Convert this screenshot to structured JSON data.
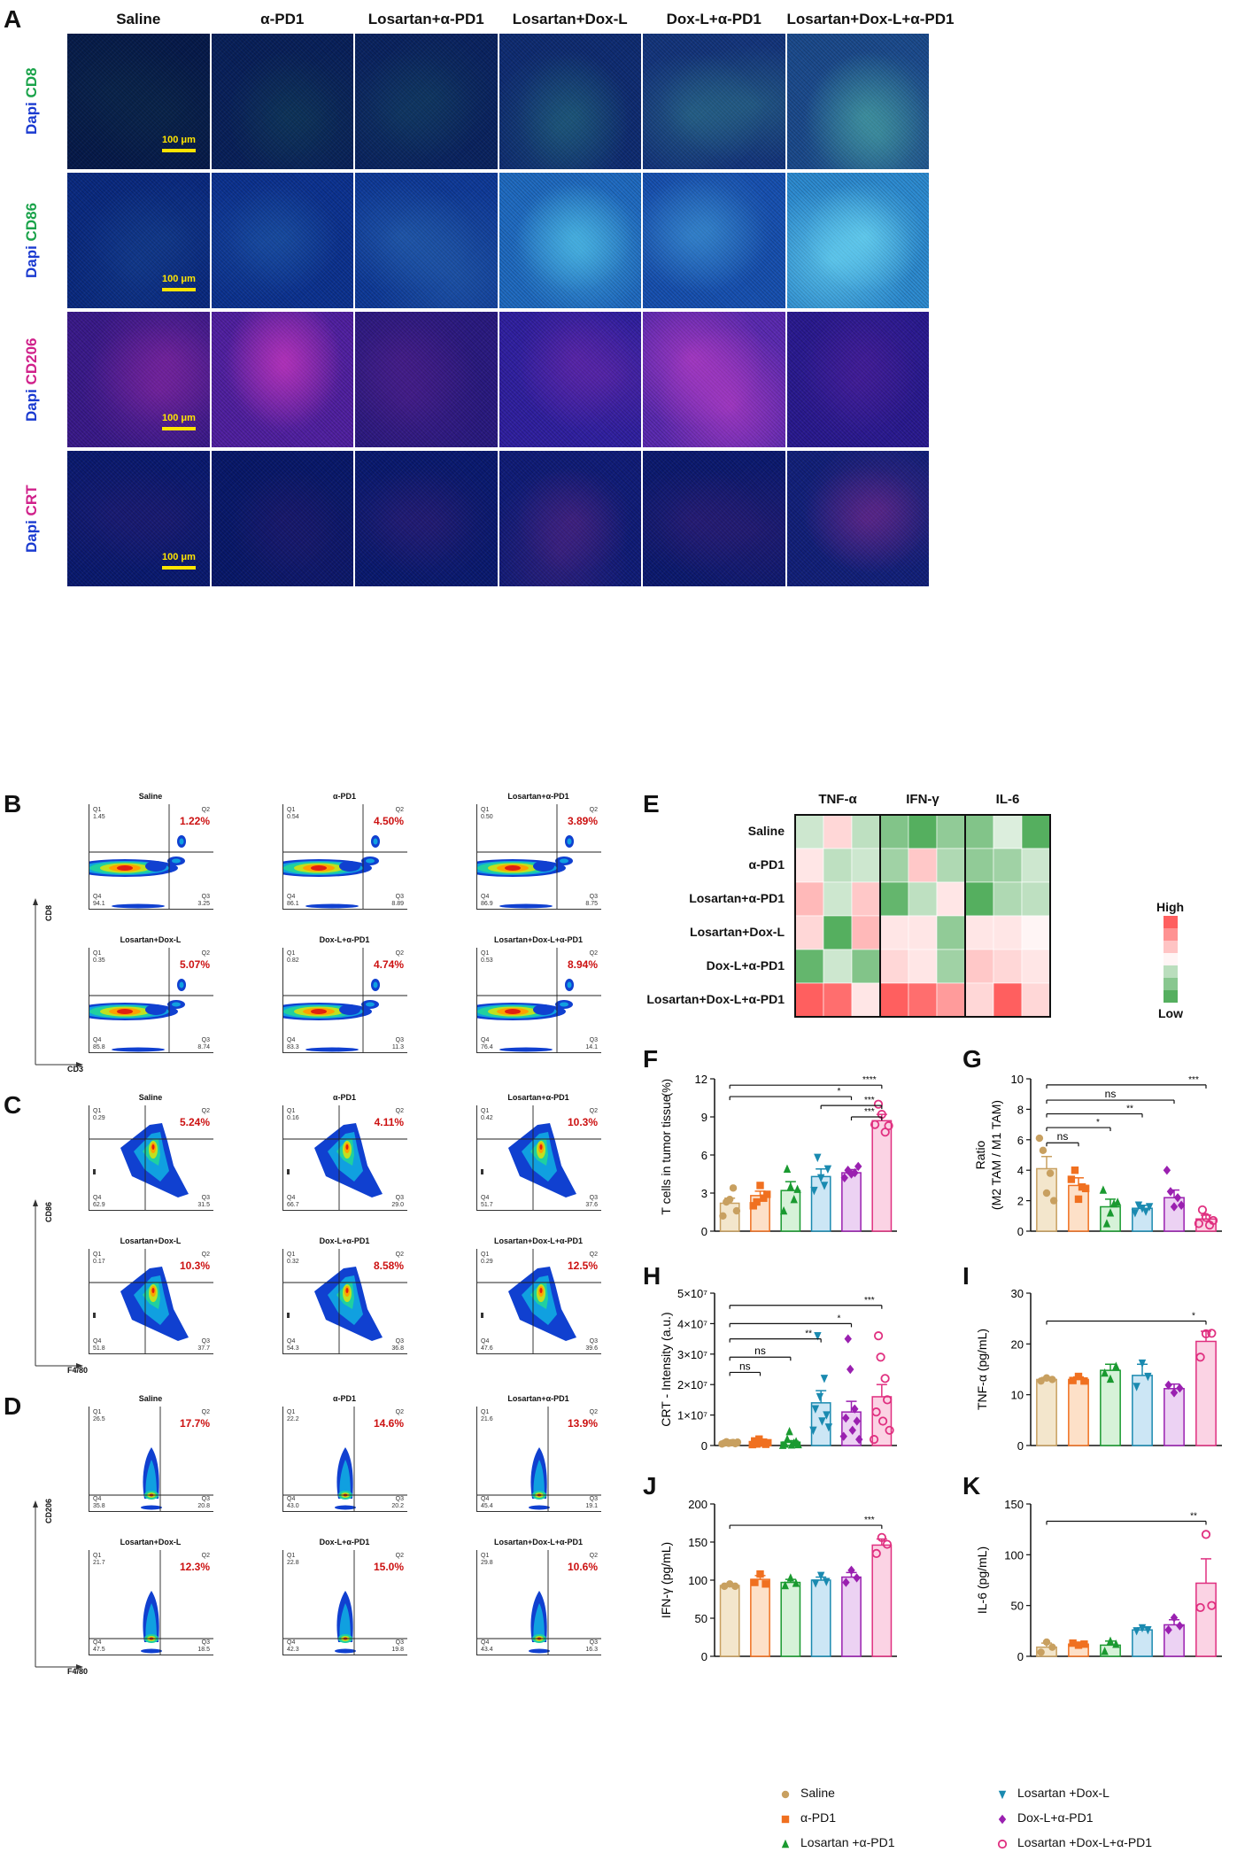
{
  "panels": {
    "A": "A",
    "B": "B",
    "C": "C",
    "D": "D",
    "E": "E",
    "F": "F",
    "G": "G",
    "H": "H",
    "I": "I",
    "J": "J",
    "K": "K"
  },
  "groups": [
    "Saline",
    "α-PD1",
    "Losartan+α-PD1",
    "Losartan+Dox-L",
    "Dox-L+α-PD1",
    "Losartan+Dox-L+α-PD1"
  ],
  "panelA": {
    "rows": [
      {
        "dapi": "Dapi",
        "marker": "CD8",
        "marker_color": "#1aa34a"
      },
      {
        "dapi": "Dapi",
        "marker": "CD86",
        "marker_color": "#1aa34a"
      },
      {
        "dapi": "Dapi",
        "marker": "CD206",
        "marker_color": "#d0208a"
      },
      {
        "dapi": "Dapi",
        "marker": "CRT",
        "marker_color": "#d0208a"
      }
    ],
    "scale": "100 μm"
  },
  "panelB": {
    "ylabel": "CD8",
    "xlabel": "CD3",
    "plots": [
      {
        "title": "Saline",
        "pct": "1.22%",
        "q1": "1.45",
        "q4": "94.1",
        "q3": "3.25",
        "q1l": "Q1",
        "q2l": "Q2",
        "q3l": "Q3",
        "q4l": "Q4"
      },
      {
        "title": "α-PD1",
        "pct": "4.50%",
        "q1": "0.54",
        "q4": "86.1",
        "q3": "8.89",
        "q1l": "Q1",
        "q2l": "Q2",
        "q3l": "Q3",
        "q4l": "Q4"
      },
      {
        "title": "Losartan+α-PD1",
        "pct": "3.89%",
        "q1": "0.50",
        "q4": "86.9",
        "q3": "8.75",
        "q1l": "Q1",
        "q2l": "Q2",
        "q3l": "Q3",
        "q4l": "Q4"
      },
      {
        "title": "Losartan+Dox-L",
        "pct": "5.07%",
        "q1": "0.35",
        "q4": "85.8",
        "q3": "8.74",
        "q1l": "Q1",
        "q2l": "Q2",
        "q3l": "Q3",
        "q4l": "Q4"
      },
      {
        "title": "Dox-L+α-PD1",
        "pct": "4.74%",
        "q1": "0.82",
        "q4": "83.3",
        "q3": "11.3",
        "q1l": "Q1",
        "q2l": "Q2",
        "q3l": "Q3",
        "q4l": "Q4"
      },
      {
        "title": "Losartan+Dox-L+α-PD1",
        "pct": "8.94%",
        "q1": "0.53",
        "q4": "76.4",
        "q3": "14.1",
        "q1l": "Q1",
        "q2l": "Q2",
        "q3l": "Q3",
        "q4l": "Q4"
      }
    ]
  },
  "panelC": {
    "ylabel": "CD86",
    "xlabel": "F4/80",
    "plots": [
      {
        "title": "Saline",
        "pct": "5.24%",
        "q1": "0.29",
        "q4": "62.9",
        "q3": "31.5",
        "q1l": "Q1",
        "q2l": "Q2",
        "q3l": "Q3",
        "q4l": "Q4"
      },
      {
        "title": "α-PD1",
        "pct": "4.11%",
        "q1": "0.16",
        "q4": "66.7",
        "q3": "29.0",
        "q1l": "Q1",
        "q2l": "Q2",
        "q3l": "Q3",
        "q4l": "Q4"
      },
      {
        "title": "Losartan+α-PD1",
        "pct": "10.3%",
        "q1": "0.42",
        "q4": "51.7",
        "q3": "37.6",
        "q1l": "Q1",
        "q2l": "Q2",
        "q3l": "Q3",
        "q4l": "Q4"
      },
      {
        "title": "Losartan+Dox-L",
        "pct": "10.3%",
        "q1": "0.17",
        "q4": "51.8",
        "q3": "37.7",
        "q1l": "Q1",
        "q2l": "Q2",
        "q3l": "Q3",
        "q4l": "Q4"
      },
      {
        "title": "Dox-L+α-PD1",
        "pct": "8.58%",
        "q1": "0.32",
        "q4": "54.3",
        "q3": "36.8",
        "q1l": "Q1",
        "q2l": "Q2",
        "q3l": "Q3",
        "q4l": "Q4"
      },
      {
        "title": "Losartan+Dox-L+α-PD1",
        "pct": "12.5%",
        "q1": "0.29",
        "q4": "47.6",
        "q3": "39.6",
        "q1l": "Q1",
        "q2l": "Q2",
        "q3l": "Q3",
        "q4l": "Q4"
      }
    ]
  },
  "panelD": {
    "ylabel": "CD206",
    "xlabel": "F4/80",
    "plots": [
      {
        "title": "Saline",
        "pct": "17.7%",
        "q1": "26.5",
        "q4": "35.8",
        "q3": "20.8",
        "q1l": "Q1",
        "q2l": "Q2",
        "q3l": "Q3",
        "q4l": "Q4"
      },
      {
        "title": "α-PD1",
        "pct": "14.6%",
        "q1": "22.2",
        "q4": "43.0",
        "q3": "20.2",
        "q1l": "Q1",
        "q2l": "Q2",
        "q3l": "Q3",
        "q4l": "Q4"
      },
      {
        "title": "Losartan+α-PD1",
        "pct": "13.9%",
        "q1": "21.6",
        "q4": "45.4",
        "q3": "19.1",
        "q1l": "Q1",
        "q2l": "Q2",
        "q3l": "Q3",
        "q4l": "Q4"
      },
      {
        "title": "Losartan+Dox-L",
        "pct": "12.3%",
        "q1": "21.7",
        "q4": "47.5",
        "q3": "18.5",
        "q1l": "Q1",
        "q2l": "Q2",
        "q3l": "Q3",
        "q4l": "Q4"
      },
      {
        "title": "Dox-L+α-PD1",
        "pct": "15.0%",
        "q1": "22.8",
        "q4": "42.3",
        "q3": "19.8",
        "q1l": "Q1",
        "q2l": "Q2",
        "q3l": "Q3",
        "q4l": "Q4"
      },
      {
        "title": "Losartan+Dox-L+α-PD1",
        "pct": "10.6%",
        "q1": "29.8",
        "q4": "43.4",
        "q3": "16.3",
        "q1l": "Q1",
        "q2l": "Q2",
        "q3l": "Q3",
        "q4l": "Q4"
      }
    ]
  },
  "heatmap": {
    "columns": [
      "TNF-α",
      "IFN-γ",
      "IL-6"
    ],
    "rows": [
      "Saline",
      "α-PD1",
      "Losartan+α-PD1",
      "Losartan+Dox-L",
      "Dox-L+α-PD1",
      "Losartan+Dox-L+α-PD1"
    ],
    "values": [
      [
        -0.2,
        0.2,
        -0.3,
        -0.7,
        -1.0,
        -0.6,
        -0.7,
        -0.1,
        -1.0
      ],
      [
        0.1,
        -0.3,
        -0.2,
        -0.5,
        0.3,
        -0.4,
        -0.6,
        -0.5,
        -0.2
      ],
      [
        0.4,
        -0.2,
        0.3,
        -0.9,
        -0.3,
        0.1,
        -1.0,
        -0.4,
        -0.3
      ],
      [
        0.2,
        -1.0,
        0.4,
        0.1,
        0.1,
        -0.6,
        0.1,
        0.1,
        0.0
      ],
      [
        -0.9,
        -0.2,
        -0.7,
        0.2,
        0.1,
        -0.5,
        0.3,
        0.2,
        0.1
      ],
      [
        1.0,
        0.9,
        0.1,
        1.0,
        0.9,
        0.6,
        0.2,
        1.0,
        0.2
      ]
    ],
    "legend_high": "High",
    "legend_low": "Low"
  },
  "legend": {
    "items": [
      {
        "label": "Saline",
        "marker": "circle",
        "color": "#c8a060"
      },
      {
        "label": "α-PD1",
        "marker": "square",
        "color": "#f07020"
      },
      {
        "label": "Losartan +α-PD1",
        "marker": "triangle",
        "color": "#1a9a30"
      },
      {
        "label": "Losartan +Dox-L",
        "marker": "tridown",
        "color": "#1a8ab0"
      },
      {
        "label": "Dox-L+α-PD1",
        "marker": "diamond",
        "color": "#9a20b0"
      },
      {
        "label": "Losartan +Dox-L+α-PD1",
        "marker": "opencircle",
        "color": "#e03080"
      }
    ]
  },
  "chart_data": [
    {
      "id": "F",
      "type": "bar",
      "ylabel": "T cells in tumor tissue",
      "yunit": "(%)",
      "ylim": [
        0,
        12
      ],
      "yticks": [
        0,
        3,
        6,
        9,
        12
      ],
      "ytick_labels": [
        "0",
        "3",
        "6",
        "9",
        "12"
      ],
      "values": [
        2.2,
        2.8,
        3.2,
        4.3,
        4.6,
        8.7
      ],
      "errors": [
        0.4,
        0.35,
        0.7,
        0.6,
        0.25,
        0.5
      ],
      "points": [
        [
          1.2,
          2.3,
          2.5,
          3.4,
          1.6
        ],
        [
          2.0,
          2.3,
          3.6,
          2.6,
          2.9
        ],
        [
          1.6,
          4.9,
          3.5,
          2.5,
          3.3
        ],
        [
          3.2,
          5.8,
          4.2,
          3.6,
          4.9
        ],
        [
          4.2,
          4.8,
          4.5,
          4.6,
          5.1
        ],
        [
          8.4,
          10.0,
          9.2,
          7.8,
          8.3
        ]
      ],
      "sig": [
        {
          "a": 0,
          "b": 5,
          "label": "****",
          "level": 11.5
        },
        {
          "a": 0,
          "b": 4,
          "label": "*",
          "level": 10.6
        },
        {
          "a": 3,
          "b": 5,
          "label": "***",
          "level": 9.9
        },
        {
          "a": 4,
          "b": 5,
          "label": "***",
          "level": 9.0
        }
      ]
    },
    {
      "id": "G",
      "type": "bar",
      "ylabel": "Ratio",
      "ylabel2": "(M2 TAM / M1 TAM)",
      "ylim": [
        0,
        10
      ],
      "yticks": [
        0,
        2,
        4,
        6,
        8,
        10
      ],
      "ytick_labels": [
        "0",
        "2",
        "4",
        "6",
        "8",
        "10"
      ],
      "values": [
        4.1,
        3.0,
        1.6,
        1.5,
        2.2,
        0.8
      ],
      "errors": [
        0.8,
        0.5,
        0.5,
        0.2,
        0.5,
        0.25
      ],
      "points": [
        [
          6.1,
          5.3,
          2.5,
          3.8,
          2.0
        ],
        [
          3.4,
          4.0,
          2.1,
          2.9,
          2.8
        ],
        [
          2.7,
          0.5,
          1.2,
          1.8,
          1.9
        ],
        [
          1.2,
          1.7,
          1.5,
          1.3,
          1.6
        ],
        [
          4.0,
          2.6,
          1.6,
          2.2,
          1.7
        ],
        [
          0.5,
          1.4,
          0.9,
          0.4,
          0.7
        ]
      ],
      "sig": [
        {
          "a": 0,
          "b": 5,
          "label": "***",
          "level": 9.6
        },
        {
          "a": 0,
          "b": 4,
          "label": "ns",
          "level": 8.6
        },
        {
          "a": 0,
          "b": 3,
          "label": "**",
          "level": 7.7
        },
        {
          "a": 0,
          "b": 2,
          "label": "*",
          "level": 6.8
        },
        {
          "a": 0,
          "b": 1,
          "label": "ns",
          "level": 5.8
        }
      ]
    },
    {
      "id": "H",
      "type": "bar",
      "ylabel": "CRT - Intensity  (a.u.)",
      "ylim": [
        0,
        50000000.0
      ],
      "yticks": [
        0,
        10000000.0,
        20000000.0,
        30000000.0,
        40000000.0,
        50000000.0
      ],
      "ytick_labels": [
        "0",
        "1×10⁷",
        "2×10⁷",
        "3×10⁷",
        "4×10⁷",
        "5×10⁷"
      ],
      "values": [
        900000.0,
        1000000.0,
        1100000.0,
        14000000.0,
        11000000.0,
        16000000.0
      ],
      "errors": [
        200000.0,
        400000.0,
        500000.0,
        4000000.0,
        3500000.0,
        4000000.0
      ],
      "points": [
        [
          500000.0,
          800000.0,
          1200000.0,
          700000.0,
          900000.0,
          1000000.0,
          600000.0,
          1100000.0
        ],
        [
          300000.0,
          1500000.0,
          500000.0,
          2100000.0,
          800000.0,
          1100000.0,
          400000.0,
          900000.0
        ],
        [
          100000.0,
          500000.0,
          2100000.0,
          4600000.0,
          200000.0,
          800000.0,
          1300000.0,
          300000.0
        ],
        [
          5000000.0,
          12000000.0,
          36000000.0,
          16000000.0,
          8000000.0,
          22000000.0,
          10000000.0,
          6000000.0
        ],
        [
          3000000.0,
          9000000.0,
          35000000.0,
          25000000.0,
          5000000.0,
          12000000.0,
          8000000.0,
          2000000.0
        ],
        [
          2000000.0,
          11000000.0,
          36000000.0,
          29000000.0,
          8000000.0,
          22000000.0,
          15000000.0,
          5000000.0
        ]
      ],
      "sig": [
        {
          "a": 0,
          "b": 5,
          "label": "***",
          "level": 46000000.0
        },
        {
          "a": 0,
          "b": 4,
          "label": "*",
          "level": 40000000.0
        },
        {
          "a": 0,
          "b": 3,
          "label": "**",
          "level": 35000000.0
        },
        {
          "a": 0,
          "b": 2,
          "label": "ns",
          "level": 29000000.0
        },
        {
          "a": 0,
          "b": 1,
          "label": "ns",
          "level": 24000000.0
        }
      ]
    },
    {
      "id": "I",
      "type": "bar",
      "ylabel": "TNF-α (pg/mL)",
      "ylim": [
        0,
        30
      ],
      "yticks": [
        0,
        10,
        20,
        30
      ],
      "ytick_labels": [
        "0",
        "10",
        "20",
        "30"
      ],
      "values": [
        13,
        13,
        14.8,
        13.8,
        11.2,
        20.5
      ],
      "errors": [
        0.4,
        0.5,
        1.2,
        2.2,
        0.9,
        2.0
      ],
      "points": [
        [
          12.7,
          13.3,
          13.0
        ],
        [
          12.8,
          13.6,
          12.7
        ],
        [
          14.3,
          13.1,
          15.6
        ],
        [
          11.6,
          16.2,
          13.6
        ],
        [
          11.9,
          10.4,
          11.3
        ],
        [
          17.4,
          22.0,
          22.1
        ]
      ],
      "sig": [
        {
          "a": 0,
          "b": 5,
          "label": "*",
          "level": 24.5
        }
      ]
    },
    {
      "id": "J",
      "type": "bar",
      "ylabel": "IFN-γ  (pg/mL)",
      "ylim": [
        0,
        200
      ],
      "yticks": [
        0,
        50,
        100,
        150,
        200
      ],
      "ytick_labels": [
        "0",
        "50",
        "100",
        "150",
        "200"
      ],
      "values": [
        93,
        101,
        97,
        100,
        104,
        146
      ],
      "errors": [
        2,
        5,
        4,
        4,
        6,
        8
      ],
      "points": [
        [
          92,
          95,
          92
        ],
        [
          97,
          108,
          95
        ],
        [
          93,
          103,
          96
        ],
        [
          96,
          106,
          98
        ],
        [
          97,
          113,
          103
        ],
        [
          135,
          156,
          147
        ]
      ],
      "sig": [
        {
          "a": 0,
          "b": 5,
          "label": "***",
          "level": 172
        }
      ]
    },
    {
      "id": "K",
      "type": "bar",
      "ylabel": "IL-6 (pg/mL)",
      "ylim": [
        0,
        150
      ],
      "yticks": [
        0,
        50,
        100,
        150
      ],
      "ytick_labels": [
        "0",
        "50",
        "100",
        "150"
      ],
      "values": [
        9,
        12,
        11,
        26,
        31,
        72
      ],
      "errors": [
        4,
        1,
        4,
        2,
        5,
        24
      ],
      "points": [
        [
          4,
          14,
          9
        ],
        [
          13,
          11,
          12
        ],
        [
          5,
          15,
          12
        ],
        [
          25,
          28,
          26
        ],
        [
          26,
          38,
          30
        ],
        [
          48,
          120,
          50
        ]
      ],
      "sig": [
        {
          "a": 0,
          "b": 5,
          "label": "**",
          "level": 133
        }
      ]
    }
  ]
}
